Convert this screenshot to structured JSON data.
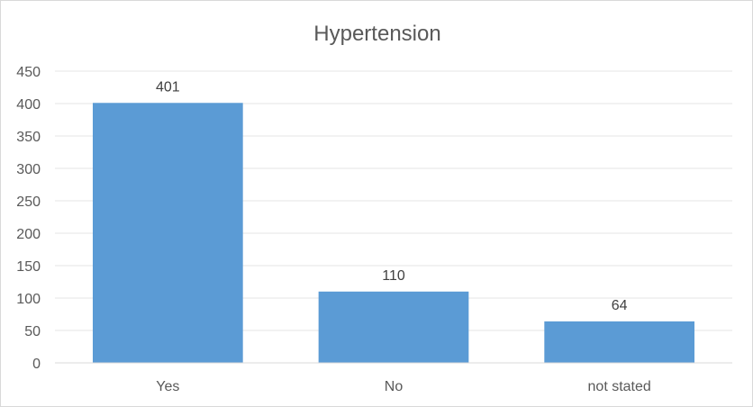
{
  "chart_data": {
    "type": "bar",
    "title": "Hypertension",
    "categories": [
      "Yes",
      "No",
      "not stated"
    ],
    "values": [
      401,
      110,
      64
    ],
    "data_labels": [
      "401",
      "110",
      "64"
    ],
    "xlabel": "",
    "ylabel": "",
    "ylim": [
      0,
      450
    ],
    "yticks": [
      0,
      50,
      100,
      150,
      200,
      250,
      300,
      350,
      400,
      450
    ],
    "grid": true,
    "legend": "none",
    "bar_color": "#5b9bd5"
  }
}
